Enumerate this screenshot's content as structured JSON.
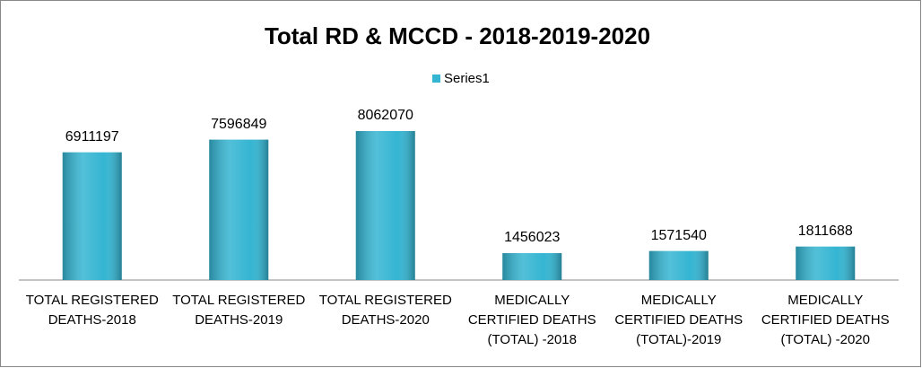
{
  "chart_data": {
    "type": "bar",
    "title": "Total RD & MCCD - 2018-2019-2020",
    "categories": [
      "TOTAL  REGISTERED\nDEATHS-2018",
      "TOTAL  REGISTERED\nDEATHS-2019",
      "TOTAL  REGISTERED\nDEATHS-2020",
      "MEDICALLY\nCERTIFIED DEATHS\n(TOTAL) -2018",
      "MEDICALLY\nCERTIFIED DEATHS\n(TOTAL)-2019",
      "MEDICALLY\nCERTIFIED DEATHS\n(TOTAL) -2020"
    ],
    "series": [
      {
        "name": "Series1",
        "color": "#34b5d2",
        "values": [
          6911197,
          7596849,
          8062070,
          1456023,
          1571540,
          1811688
        ]
      }
    ],
    "legend": "top"
  }
}
